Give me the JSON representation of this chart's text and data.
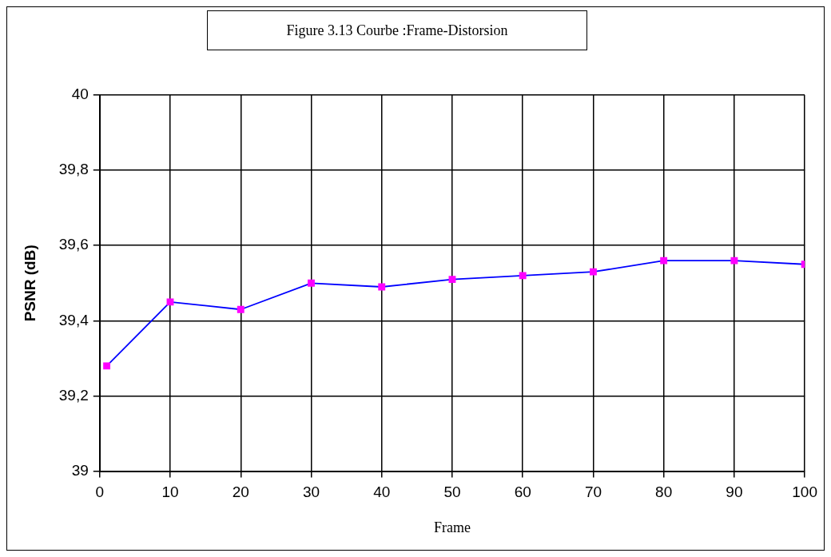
{
  "chart_data": {
    "type": "line",
    "title": "Figure 3.13 Courbe :Frame-Distorsion",
    "xlabel": "Frame",
    "ylabel": "PSNR (dB)",
    "x": [
      1,
      10,
      20,
      30,
      40,
      50,
      60,
      70,
      80,
      90,
      100
    ],
    "series": [
      {
        "color": "#0000ff",
        "values": [
          39.28,
          39.45,
          39.43,
          39.5,
          39.49,
          39.51,
          39.52,
          39.53,
          39.56,
          39.56,
          39.55
        ]
      }
    ],
    "xlim": [
      0,
      100
    ],
    "xticks": [
      0,
      10,
      20,
      30,
      40,
      50,
      60,
      70,
      80,
      90,
      100
    ],
    "ylim": [
      39,
      40
    ],
    "yticks": [
      39,
      {
        "value": 39.2,
        "label": "39,2"
      },
      {
        "value": 39.4,
        "label": "39,4"
      },
      {
        "value": 39.6,
        "label": "39,6"
      },
      {
        "value": 39.8,
        "label": "39,8"
      },
      40
    ],
    "grid": true,
    "marker": "square",
    "line_style": "solid",
    "legend": false
  }
}
